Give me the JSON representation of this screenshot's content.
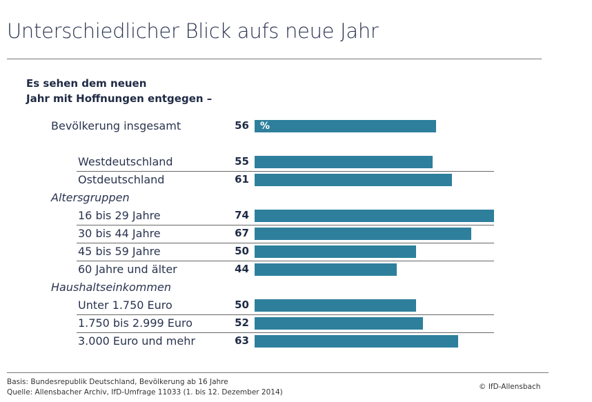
{
  "title": "Unterschiedlicher Blick aufs neue Jahr",
  "chart_data": {
    "type": "bar",
    "orientation": "horizontal",
    "subtitle_line1": "Es sehen dem neuen",
    "subtitle_line2": "Jahr mit Hoffnungen entgegen –",
    "unit": "%",
    "bar_color": "#2e7f9c",
    "xlim": [
      0,
      74
    ],
    "rows": [
      {
        "kind": "bar",
        "label": "Bevölkerung insgesamt",
        "value": 56,
        "indent": false
      },
      {
        "kind": "bar",
        "label": "Westdeutschland",
        "value": 55,
        "indent": true
      },
      {
        "kind": "bar",
        "label": "Ostdeutschland",
        "value": 61,
        "indent": true
      },
      {
        "kind": "group",
        "label": "Altersgruppen"
      },
      {
        "kind": "bar",
        "label": "16 bis 29 Jahre",
        "value": 74,
        "indent": true
      },
      {
        "kind": "bar",
        "label": "30 bis 44 Jahre",
        "value": 67,
        "indent": true
      },
      {
        "kind": "bar",
        "label": "45 bis 59 Jahre",
        "value": 50,
        "indent": true
      },
      {
        "kind": "bar",
        "label": "60 Jahre und älter",
        "value": 44,
        "indent": true
      },
      {
        "kind": "group",
        "label": "Haushaltseinkommen"
      },
      {
        "kind": "bar",
        "label": "Unter 1.750 Euro",
        "value": 50,
        "indent": true
      },
      {
        "kind": "bar",
        "label": "1.750 bis 2.999 Euro",
        "value": 52,
        "indent": true
      },
      {
        "kind": "bar",
        "label": "3.000 Euro und mehr",
        "value": 63,
        "indent": true
      }
    ]
  },
  "footer": {
    "basis": "Basis: Bundesrepublik Deutschland, Bevölkerung ab 16 Jahre",
    "source": "Quelle: Allensbacher Archiv, IfD-Umfrage 11033 (1. bis 12. Dezember 2014)",
    "copyright": "© IfD-Allensbach"
  }
}
